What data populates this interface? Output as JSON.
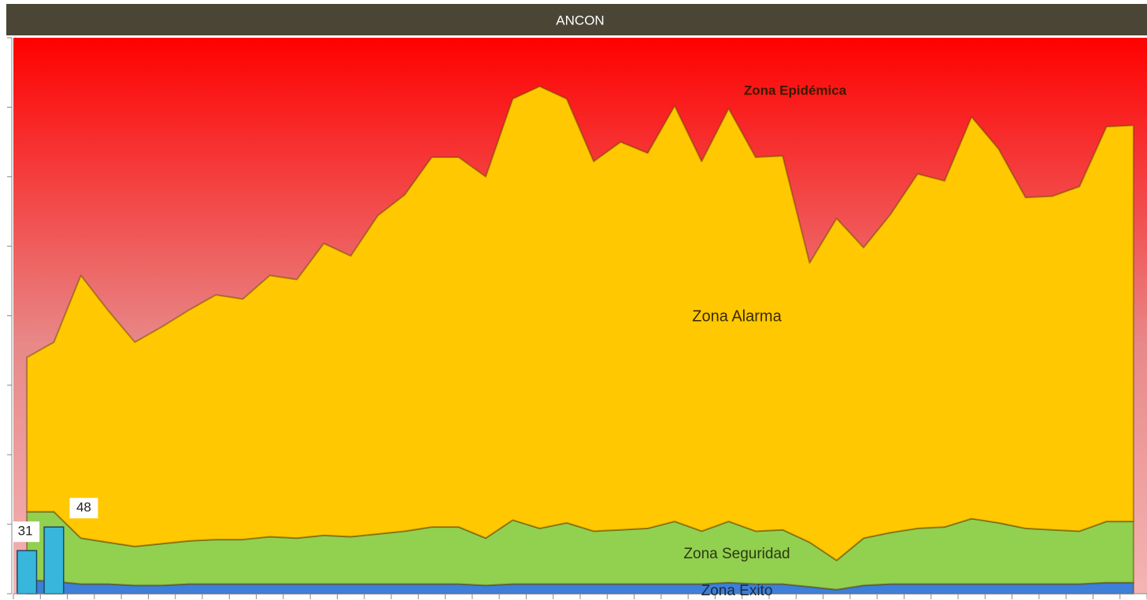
{
  "chart_data": {
    "type": "stacked-area",
    "title": "ANCON",
    "annotations": [
      "Zona Epidémica"
    ],
    "categories": [
      null,
      null,
      null,
      null,
      null,
      null,
      null,
      null,
      null,
      null,
      null,
      null,
      null,
      null,
      null,
      null,
      null,
      null,
      null,
      null,
      null,
      null,
      null,
      null,
      null,
      null,
      null,
      null,
      null,
      null,
      null,
      null,
      null,
      null,
      null,
      null,
      null,
      null,
      null,
      null,
      null,
      null
    ],
    "series": [
      {
        "name": "Zona Exito",
        "color": "#3d7fd9",
        "values": [
          10,
          9,
          7,
          7,
          6,
          6,
          7,
          7,
          7,
          7,
          7,
          7,
          7,
          7,
          7,
          7,
          7,
          6,
          7,
          7,
          7,
          7,
          7,
          7,
          7,
          7,
          8,
          7,
          7,
          5,
          3,
          6,
          7,
          7,
          7,
          7,
          7,
          7,
          7,
          7,
          8,
          8
        ]
      },
      {
        "name": "Zona Seguridad",
        "color": "#92d050",
        "values": [
          49,
          50,
          33,
          30,
          28,
          30,
          31,
          32,
          32,
          34,
          33,
          35,
          34,
          36,
          38,
          41,
          41,
          34,
          46,
          40,
          44,
          38,
          39,
          40,
          45,
          38,
          44,
          38,
          39,
          32,
          21,
          34,
          37,
          40,
          41,
          47,
          44,
          40,
          39,
          38,
          44,
          44
        ]
      },
      {
        "name": "Zona Alarma",
        "color": "#ffc800",
        "values": [
          111,
          122,
          189,
          167,
          147,
          156,
          166,
          176,
          173,
          188,
          186,
          210,
          202,
          229,
          242,
          266,
          266,
          260,
          303,
          318,
          305,
          266,
          279,
          270,
          299,
          266,
          297,
          269,
          269,
          201,
          246,
          209,
          229,
          255,
          249,
          289,
          269,
          238,
          240,
          248,
          284,
          285
        ]
      }
    ],
    "bars": {
      "color": "#38b6dc",
      "values": [
        31,
        48,
        null,
        null,
        null,
        null,
        null,
        null,
        null,
        null,
        null,
        null,
        null,
        null,
        null,
        null,
        null,
        null,
        null,
        null,
        null,
        null,
        null,
        null,
        null,
        null,
        null,
        null,
        null,
        null,
        null,
        null,
        null,
        null,
        null,
        null,
        null,
        null,
        null,
        null,
        null,
        null
      ]
    },
    "background_color": "#ff0000",
    "ylim": [
      0,
      400
    ],
    "yticks": [
      0,
      50,
      100,
      150,
      200,
      250,
      300,
      350,
      400
    ]
  }
}
